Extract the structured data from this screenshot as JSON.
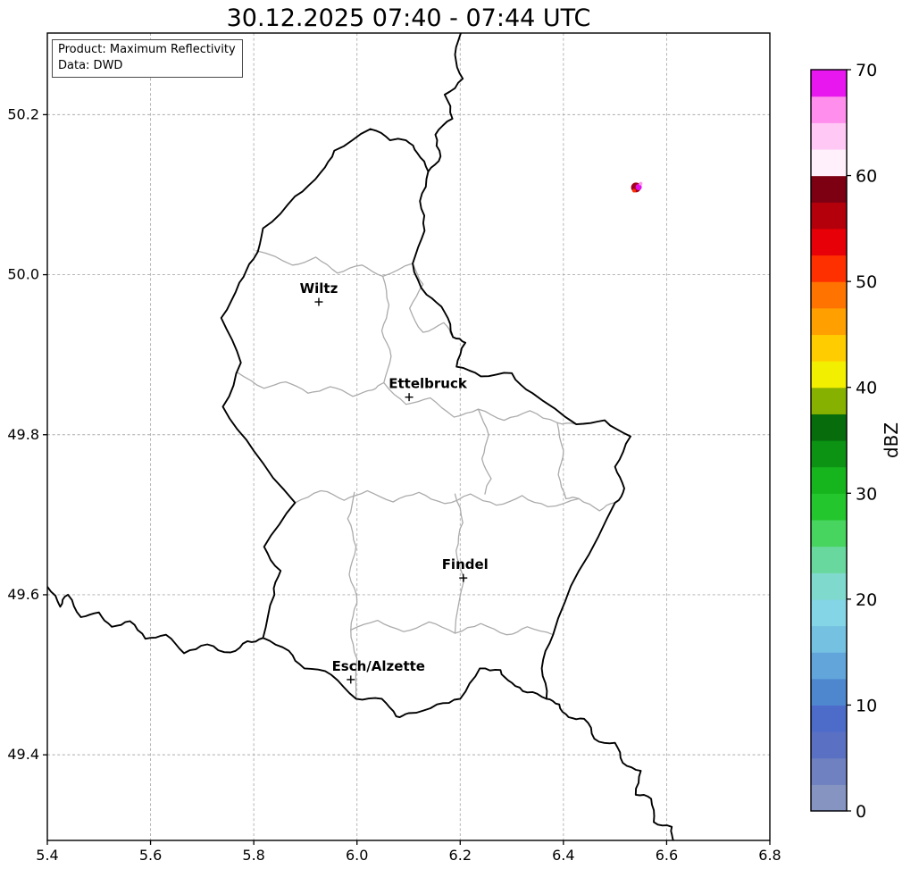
{
  "title": "30.12.2025 07:40 - 07:44 UTC",
  "info_box": {
    "line1": "Product: Maximum Reflectivity",
    "line2": "Data: DWD"
  },
  "axes": {
    "x_min": 5.4,
    "x_max": 6.8,
    "y_min": 49.293,
    "y_max": 50.302,
    "x_ticks": [
      "5.4",
      "5.6",
      "5.8",
      "6.0",
      "6.2",
      "6.4",
      "6.6",
      "6.8"
    ],
    "y_ticks": [
      "49.4",
      "49.6",
      "49.8",
      "50.0",
      "50.2"
    ],
    "grid": true
  },
  "colorbar": {
    "label": "dBZ",
    "min": 0,
    "max": 70,
    "ticks": [
      0,
      10,
      20,
      30,
      40,
      50,
      60,
      70
    ],
    "colors_bottom_to_top": [
      "#8694c1",
      "#7081c1",
      "#5a71c3",
      "#4d6cca",
      "#4f87cf",
      "#61a5da",
      "#75c1e2",
      "#84d5e6",
      "#7fd9cc",
      "#69d89e",
      "#47d55f",
      "#23c62d",
      "#17b51d",
      "#0c9313",
      "#076c0b",
      "#87b100",
      "#f3ef00",
      "#ffcc00",
      "#ffa000",
      "#ff7300",
      "#ff3000",
      "#e80008",
      "#b4000b",
      "#7c0012",
      "#fff0fb",
      "#ffc8f5",
      "#ff8eec",
      "#e816ef"
    ]
  },
  "chart_data": {
    "type": "heatmap",
    "title": "30.12.2025 07:40 - 07:44 UTC",
    "xlabel": "",
    "ylabel": "dBZ",
    "xlim": [
      5.4,
      6.8
    ],
    "ylim": [
      49.293,
      50.302
    ],
    "echo": {
      "lon": 6.546,
      "lat": 50.11,
      "approx_dbz_range": [
        50,
        70
      ]
    }
  },
  "map": {
    "cities": [
      {
        "name": "Wiltz",
        "lon": 5.926,
        "lat": 49.966,
        "label_dx": 0
      },
      {
        "name": "Ettelbruck",
        "lon": 6.101,
        "lat": 49.847,
        "label_dx": 21
      },
      {
        "name": "Findel",
        "lon": 6.206,
        "lat": 49.621,
        "label_dx": 2
      },
      {
        "name": "Esch/Alzette",
        "lon": 5.988,
        "lat": 49.494,
        "label_dx": 31
      }
    ],
    "borders": {
      "luxembourg_outline": [
        [
          6.026,
          50.182
        ],
        [
          6.064,
          50.168
        ],
        [
          6.095,
          50.168
        ],
        [
          6.117,
          50.152
        ],
        [
          6.138,
          50.129
        ],
        [
          6.122,
          50.092
        ],
        [
          6.131,
          50.055
        ],
        [
          6.108,
          50.014
        ],
        [
          6.135,
          49.975
        ],
        [
          6.17,
          49.953
        ],
        [
          6.186,
          49.922
        ],
        [
          6.21,
          49.915
        ],
        [
          6.193,
          49.885
        ],
        [
          6.24,
          49.873
        ],
        [
          6.3,
          49.877
        ],
        [
          6.34,
          49.852
        ],
        [
          6.425,
          49.813
        ],
        [
          6.48,
          49.818
        ],
        [
          6.53,
          49.798
        ],
        [
          6.5,
          49.76
        ],
        [
          6.518,
          49.733
        ],
        [
          6.5,
          49.715
        ],
        [
          6.43,
          49.63
        ],
        [
          6.38,
          49.55
        ],
        [
          6.358,
          49.508
        ],
        [
          6.367,
          49.47
        ],
        [
          6.33,
          49.478
        ],
        [
          6.3,
          49.49
        ],
        [
          6.278,
          49.506
        ],
        [
          6.238,
          49.508
        ],
        [
          6.2,
          49.47
        ],
        [
          6.155,
          49.463
        ],
        [
          6.1,
          49.452
        ],
        [
          6.076,
          49.448
        ],
        [
          6.048,
          49.47
        ],
        [
          5.998,
          49.47
        ],
        [
          5.95,
          49.5
        ],
        [
          5.898,
          49.508
        ],
        [
          5.868,
          49.53
        ],
        [
          5.818,
          49.546
        ],
        [
          5.84,
          49.6
        ],
        [
          5.852,
          49.63
        ],
        [
          5.82,
          49.66
        ],
        [
          5.88,
          49.715
        ],
        [
          5.8,
          49.78
        ],
        [
          5.74,
          49.835
        ],
        [
          5.775,
          49.89
        ],
        [
          5.737,
          49.946
        ],
        [
          5.772,
          49.99
        ],
        [
          5.8,
          50.02
        ],
        [
          5.818,
          50.058
        ],
        [
          5.88,
          50.098
        ],
        [
          5.93,
          50.128
        ],
        [
          5.956,
          50.155
        ],
        [
          6.026,
          50.182
        ]
      ],
      "belgium_germany_border": [
        [
          6.138,
          50.129
        ],
        [
          6.162,
          50.148
        ],
        [
          6.152,
          50.175
        ],
        [
          6.185,
          50.195
        ],
        [
          6.17,
          50.225
        ],
        [
          6.205,
          50.245
        ],
        [
          6.19,
          50.275
        ],
        [
          6.21,
          50.31
        ]
      ],
      "france_belgium_border": [
        [
          5.4,
          49.61
        ],
        [
          5.425,
          49.585
        ],
        [
          5.44,
          49.6
        ],
        [
          5.465,
          49.572
        ],
        [
          5.5,
          49.578
        ],
        [
          5.525,
          49.56
        ],
        [
          5.56,
          49.567
        ],
        [
          5.59,
          49.545
        ],
        [
          5.63,
          49.55
        ],
        [
          5.665,
          49.527
        ],
        [
          5.71,
          49.538
        ],
        [
          5.755,
          49.528
        ],
        [
          5.788,
          49.542
        ],
        [
          5.818,
          49.546
        ]
      ],
      "france_germany_border": [
        [
          6.367,
          49.47
        ],
        [
          6.392,
          49.463
        ],
        [
          6.41,
          49.447
        ],
        [
          6.44,
          49.445
        ],
        [
          6.46,
          49.42
        ],
        [
          6.5,
          49.415
        ],
        [
          6.515,
          49.39
        ],
        [
          6.55,
          49.38
        ],
        [
          6.54,
          49.35
        ],
        [
          6.57,
          49.345
        ],
        [
          6.575,
          49.316
        ],
        [
          6.61,
          49.31
        ],
        [
          6.615,
          49.29
        ]
      ]
    },
    "canton_lines": [
      [
        [
          5.805,
          50.03
        ],
        [
          5.875,
          50.012
        ],
        [
          5.92,
          50.022
        ],
        [
          5.962,
          50.002
        ],
        [
          6.01,
          50.012
        ],
        [
          6.05,
          49.998
        ],
        [
          6.108,
          50.014
        ]
      ],
      [
        [
          6.108,
          50.014
        ],
        [
          6.128,
          49.988
        ],
        [
          6.102,
          49.958
        ],
        [
          6.128,
          49.928
        ],
        [
          6.168,
          49.94
        ],
        [
          6.186,
          49.922
        ]
      ],
      [
        [
          6.05,
          49.998
        ],
        [
          6.062,
          49.962
        ],
        [
          6.048,
          49.93
        ],
        [
          6.066,
          49.898
        ],
        [
          6.052,
          49.865
        ]
      ],
      [
        [
          5.768,
          49.878
        ],
        [
          5.82,
          49.858
        ],
        [
          5.862,
          49.866
        ],
        [
          5.905,
          49.852
        ],
        [
          5.948,
          49.86
        ],
        [
          5.992,
          49.848
        ],
        [
          6.03,
          49.856
        ],
        [
          6.052,
          49.865
        ]
      ],
      [
        [
          6.052,
          49.865
        ],
        [
          6.095,
          49.838
        ],
        [
          6.142,
          49.846
        ],
        [
          6.188,
          49.822
        ],
        [
          6.235,
          49.832
        ],
        [
          6.285,
          49.818
        ],
        [
          6.335,
          49.83
        ],
        [
          6.388,
          49.815
        ],
        [
          6.425,
          49.813
        ]
      ],
      [
        [
          5.88,
          49.715
        ],
        [
          5.93,
          49.73
        ],
        [
          5.975,
          49.718
        ],
        [
          6.02,
          49.73
        ],
        [
          6.07,
          49.716
        ],
        [
          6.12,
          49.728
        ],
        [
          6.17,
          49.714
        ],
        [
          6.22,
          49.726
        ],
        [
          6.27,
          49.712
        ],
        [
          6.32,
          49.724
        ],
        [
          6.37,
          49.71
        ],
        [
          6.43,
          49.72
        ],
        [
          6.47,
          49.705
        ],
        [
          6.5,
          49.715
        ]
      ],
      [
        [
          5.995,
          49.728
        ],
        [
          5.982,
          49.695
        ],
        [
          5.998,
          49.66
        ],
        [
          5.985,
          49.625
        ],
        [
          6.0,
          49.59
        ],
        [
          5.988,
          49.556
        ],
        [
          6.0,
          49.52
        ],
        [
          5.998,
          49.47
        ]
      ],
      [
        [
          5.988,
          49.556
        ],
        [
          6.04,
          49.568
        ],
        [
          6.09,
          49.554
        ],
        [
          6.14,
          49.566
        ],
        [
          6.19,
          49.552
        ],
        [
          6.24,
          49.564
        ],
        [
          6.29,
          49.55
        ],
        [
          6.33,
          49.56
        ],
        [
          6.38,
          49.55
        ]
      ],
      [
        [
          6.235,
          49.832
        ],
        [
          6.255,
          49.8
        ],
        [
          6.242,
          49.77
        ],
        [
          6.26,
          49.745
        ],
        [
          6.248,
          49.726
        ]
      ],
      [
        [
          6.388,
          49.815
        ],
        [
          6.4,
          49.78
        ],
        [
          6.39,
          49.75
        ],
        [
          6.405,
          49.72
        ],
        [
          6.43,
          49.72
        ]
      ],
      [
        [
          6.19,
          49.726
        ],
        [
          6.205,
          49.69
        ],
        [
          6.192,
          49.655
        ],
        [
          6.208,
          49.62
        ],
        [
          6.19,
          49.552
        ]
      ]
    ]
  },
  "radar_echo": {
    "cells": [
      {
        "lon": 6.5406,
        "lat": 50.109,
        "size": 11,
        "color": "#a3001d"
      },
      {
        "lon": 6.537,
        "lat": 50.105,
        "size": 4,
        "color": "#ff2f00"
      },
      {
        "lon": 6.5458,
        "lat": 50.1095,
        "size": 7,
        "color": "#e10fe8"
      },
      {
        "lon": 6.5497,
        "lat": 50.1138,
        "size": 4,
        "color": "#ff9bee"
      }
    ]
  }
}
